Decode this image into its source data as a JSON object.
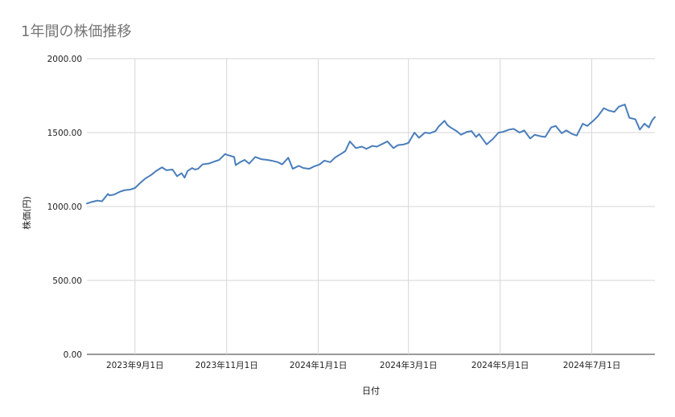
{
  "chart_data": {
    "type": "line",
    "title": "1年間の株価推移",
    "xlabel": "日付",
    "ylabel": "株価(円)",
    "ylim": [
      0,
      2000
    ],
    "yticks": [
      "0.00",
      "500.00",
      "1000.00",
      "1500.00",
      "2000.00"
    ],
    "yticks_values": [
      0,
      500,
      1000,
      1500,
      2000
    ],
    "xlim": [
      "2023-07-31",
      "2024-08-12"
    ],
    "xticks": [
      {
        "date": "2023-09-01",
        "label": "2023年9月1日"
      },
      {
        "date": "2023-11-01",
        "label": "2023年11月1日"
      },
      {
        "date": "2024-01-01",
        "label": "2024年1月1日"
      },
      {
        "date": "2024-03-01",
        "label": "2024年3月1日"
      },
      {
        "date": "2024-05-01",
        "label": "2024年5月1日"
      },
      {
        "date": "2024-07-01",
        "label": "2024年7月1日"
      }
    ],
    "grid": true,
    "legend": "none",
    "series_color": "#4a7ebb",
    "series": [
      {
        "x": [
          "2023-07-31",
          "2023-08-03",
          "2023-08-07",
          "2023-08-10",
          "2023-08-14",
          "2023-08-15",
          "2023-08-18",
          "2023-08-22",
          "2023-08-25",
          "2023-08-29",
          "2023-09-01",
          "2023-09-04",
          "2023-09-08",
          "2023-09-12",
          "2023-09-15",
          "2023-09-19",
          "2023-09-22",
          "2023-09-26",
          "2023-09-29",
          "2023-10-02",
          "2023-10-04",
          "2023-10-06",
          "2023-10-09",
          "2023-10-11",
          "2023-10-13",
          "2023-10-16",
          "2023-10-20",
          "2023-10-24",
          "2023-10-27",
          "2023-10-31",
          "2023-11-01",
          "2023-11-06",
          "2023-11-07",
          "2023-11-10",
          "2023-11-13",
          "2023-11-16",
          "2023-11-20",
          "2023-11-24",
          "2023-11-28",
          "2023-12-01",
          "2023-12-05",
          "2023-12-08",
          "2023-12-12",
          "2023-12-15",
          "2023-12-19",
          "2023-12-22",
          "2023-12-26",
          "2023-12-29",
          "2024-01-02",
          "2024-01-05",
          "2024-01-09",
          "2024-01-12",
          "2024-01-16",
          "2024-01-19",
          "2024-01-22",
          "2024-01-26",
          "2024-01-30",
          "2024-02-02",
          "2024-02-06",
          "2024-02-09",
          "2024-02-13",
          "2024-02-16",
          "2024-02-20",
          "2024-02-23",
          "2024-02-27",
          "2024-03-01",
          "2024-03-05",
          "2024-03-08",
          "2024-03-12",
          "2024-03-15",
          "2024-03-19",
          "2024-03-21",
          "2024-03-25",
          "2024-03-27",
          "2024-03-29",
          "2024-04-02",
          "2024-04-05",
          "2024-04-09",
          "2024-04-12",
          "2024-04-15",
          "2024-04-17",
          "2024-04-22",
          "2024-04-26",
          "2024-04-30",
          "2024-05-03",
          "2024-05-07",
          "2024-05-10",
          "2024-05-14",
          "2024-05-17",
          "2024-05-21",
          "2024-05-24",
          "2024-05-28",
          "2024-05-31",
          "2024-06-04",
          "2024-06-07",
          "2024-06-11",
          "2024-06-14",
          "2024-06-18",
          "2024-06-21",
          "2024-06-25",
          "2024-06-28",
          "2024-07-02",
          "2024-07-05",
          "2024-07-09",
          "2024-07-12",
          "2024-07-16",
          "2024-07-19",
          "2024-07-23",
          "2024-07-26",
          "2024-07-30",
          "2024-08-02",
          "2024-08-05",
          "2024-08-08",
          "2024-08-10",
          "2024-08-12"
        ],
        "values": [
          1020,
          1030,
          1040,
          1035,
          1085,
          1075,
          1080,
          1100,
          1110,
          1115,
          1125,
          1155,
          1190,
          1215,
          1240,
          1265,
          1245,
          1250,
          1205,
          1225,
          1195,
          1240,
          1260,
          1250,
          1255,
          1285,
          1290,
          1305,
          1315,
          1355,
          1350,
          1335,
          1280,
          1300,
          1315,
          1290,
          1335,
          1320,
          1315,
          1310,
          1300,
          1285,
          1330,
          1255,
          1275,
          1260,
          1255,
          1270,
          1285,
          1310,
          1300,
          1330,
          1355,
          1375,
          1440,
          1395,
          1405,
          1390,
          1410,
          1405,
          1425,
          1440,
          1395,
          1415,
          1420,
          1430,
          1500,
          1465,
          1500,
          1495,
          1510,
          1540,
          1580,
          1550,
          1535,
          1510,
          1485,
          1505,
          1510,
          1470,
          1490,
          1420,
          1455,
          1500,
          1505,
          1520,
          1525,
          1500,
          1515,
          1460,
          1485,
          1475,
          1470,
          1535,
          1545,
          1495,
          1515,
          1490,
          1480,
          1560,
          1545,
          1580,
          1610,
          1665,
          1650,
          1640,
          1675,
          1690,
          1600,
          1590,
          1520,
          1560,
          1535,
          1580,
          1605
        ]
      }
    ]
  }
}
